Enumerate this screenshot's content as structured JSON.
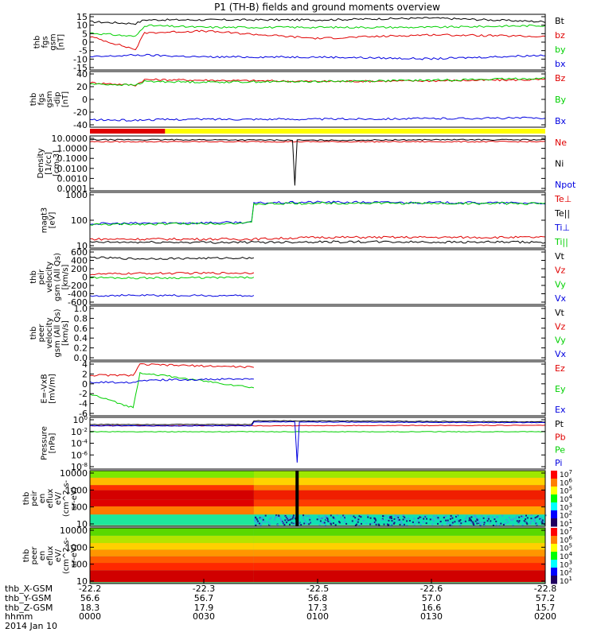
{
  "title": "P1 (TH-B) fields and ground moments overview",
  "colors": {
    "black": "#000000",
    "red": "#e00000",
    "green": "#00d000",
    "blue": "#0000e0",
    "mode_fast": "#e00000",
    "mode_slow": "#ffff00"
  },
  "ephemeris": {
    "labels": [
      "thb_X-GSM",
      "thb_Y-GSM",
      "thb_Z-GSM",
      "hhmm"
    ],
    "date": "2014 Jan 10",
    "ticks": [
      {
        "x": "-22.2",
        "y": "56.6",
        "z": "18.3",
        "t": "0000"
      },
      {
        "x": "-22.3",
        "y": "56.7",
        "z": "17.9",
        "t": "0030"
      },
      {
        "x": "-22.5",
        "y": "56.8",
        "z": "17.3",
        "t": "0100"
      },
      {
        "x": "-22.6",
        "y": "57.0",
        "z": "16.6",
        "t": "0130"
      },
      {
        "x": "-22.8",
        "y": "57.2",
        "z": "15.7",
        "t": "0200"
      }
    ]
  },
  "chart_data": [
    {
      "type": "line",
      "ylabel": [
        "thb",
        "fgs",
        "gsm",
        "[nT]"
      ],
      "yticks": [
        "15",
        "10",
        "5",
        "0",
        "-5",
        "-10",
        "-15"
      ],
      "ylim": [
        -15,
        15
      ],
      "legend": [
        "Bt",
        "bz",
        "by",
        "bx"
      ],
      "x_hours": [
        0,
        0.2,
        0.24,
        0.5,
        1.0,
        1.5,
        2.0
      ],
      "series": [
        {
          "name": "Bt",
          "color": "black",
          "values": [
            11,
            10,
            12,
            12,
            12,
            13,
            11
          ]
        },
        {
          "name": "bz",
          "color": "red",
          "values": [
            3,
            -4,
            5,
            6,
            2,
            4,
            3
          ]
        },
        {
          "name": "by",
          "color": "green",
          "values": [
            5,
            3,
            9,
            8,
            8,
            8,
            9
          ]
        },
        {
          "name": "bx",
          "color": "blue",
          "values": [
            -8,
            -7,
            -7,
            -8,
            -8,
            -9,
            -7
          ]
        }
      ]
    },
    {
      "type": "line",
      "ylabel": [
        "thb",
        "fgs",
        "gsm",
        "-dip",
        "[nT]"
      ],
      "yticks": [
        "40",
        "20",
        "0",
        "-20",
        "-40"
      ],
      "ylim": [
        -50,
        40
      ],
      "legend": [
        "Bz",
        "By",
        "Bx"
      ],
      "x_hours": [
        0,
        0.2,
        0.24,
        0.5,
        1.0,
        1.5,
        2.0
      ],
      "series": [
        {
          "name": "Bz",
          "color": "red",
          "values": [
            22,
            18,
            27,
            26,
            24,
            25,
            27
          ]
        },
        {
          "name": "By",
          "color": "green",
          "values": [
            20,
            18,
            24,
            23,
            24,
            26,
            29
          ]
        },
        {
          "name": "Bx",
          "color": "blue",
          "values": [
            -38,
            -39,
            -38,
            -37,
            -37,
            -36,
            -35
          ]
        }
      ]
    },
    {
      "type": "line",
      "ylabel": [
        "Density",
        "[1/cc]",
        "[cm-3]"
      ],
      "yticks": [
        "10.0000",
        "1.0000",
        "0.1000",
        "0.0100",
        "0.0010",
        "0.0001"
      ],
      "ylim": [
        0.0001,
        10
      ],
      "log": true,
      "legend": [
        "Ne",
        "Ni",
        "Npot"
      ],
      "x_hours": [
        0,
        0.5,
        1.0,
        1.5,
        2.0
      ],
      "series": [
        {
          "name": "Ne",
          "color": "red",
          "values": [
            3,
            3,
            3,
            3,
            3
          ]
        },
        {
          "name": "Ni",
          "color": "black",
          "values": [
            4.5,
            4.5,
            4.0,
            4.5,
            4.5
          ],
          "dip": {
            "at": 0.9,
            "to": 0.0003
          }
        }
      ]
    },
    {
      "type": "line",
      "ylabel": [
        "magt3",
        "[eV]"
      ],
      "yticks": [
        "1000",
        "100",
        "10"
      ],
      "ylim": [
        10,
        3000
      ],
      "log": true,
      "legend": [
        "Te⊥",
        "Te||",
        "Ti⊥",
        "Ti||"
      ],
      "x_hours": [
        0,
        0.72,
        0.72,
        1.0,
        2.0
      ],
      "series": [
        {
          "name": "Te⊥",
          "color": "red",
          "values": [
            25,
            25,
            25,
            30,
            30
          ]
        },
        {
          "name": "Te||",
          "color": "black",
          "values": [
            18,
            18,
            18,
            19,
            18
          ]
        },
        {
          "name": "Ti⊥",
          "color": "blue",
          "values": [
            120,
            140,
            1000,
            1100,
            1000
          ]
        },
        {
          "name": "Ti||",
          "color": "green",
          "values": [
            110,
            130,
            900,
            1000,
            950
          ]
        }
      ]
    },
    {
      "type": "line",
      "ylabel": [
        "thb",
        "peir",
        "velocity",
        "gsm (All Qs)",
        "[km/s]"
      ],
      "yticks": [
        "600",
        "400",
        "200",
        "0",
        "-200",
        "-400",
        "-600"
      ],
      "ylim": [
        -600,
        600
      ],
      "legend": [
        "Vt",
        "Vz",
        "Vy",
        "Vx"
      ],
      "x_hours": [
        0,
        0.2,
        0.72
      ],
      "series": [
        {
          "name": "Vt",
          "color": "black",
          "values": [
            430,
            400,
            420
          ]
        },
        {
          "name": "Vz",
          "color": "red",
          "values": [
            60,
            80,
            90
          ]
        },
        {
          "name": "Vy",
          "color": "green",
          "values": [
            -10,
            -20,
            -10
          ]
        },
        {
          "name": "Vx",
          "color": "blue",
          "values": [
            -410,
            -400,
            -410
          ]
        }
      ]
    },
    {
      "type": "line",
      "ylabel": [
        "thb",
        "peer",
        "velocity",
        "gsm (All Qs)",
        "[km/s]"
      ],
      "yticks": [
        "1.0",
        "0.8",
        "0.6",
        "0.4",
        "0.2",
        "0.0"
      ],
      "ylim": [
        0,
        1
      ],
      "legend": [
        "Vt",
        "Vz",
        "Vy",
        "Vx"
      ],
      "series": []
    },
    {
      "type": "line",
      "ylabel": [
        "E=-VxB",
        "[mV/m]"
      ],
      "yticks": [
        "4",
        "2",
        "0",
        "-2",
        "-4",
        "-6"
      ],
      "ylim": [
        -6,
        4
      ],
      "legend": [
        "Ez",
        "Ey",
        "Ex"
      ],
      "x_hours": [
        0,
        0.19,
        0.22,
        0.72
      ],
      "series": [
        {
          "name": "Ez",
          "color": "red",
          "values": [
            1.5,
            1.5,
            3.5,
            3.0
          ]
        },
        {
          "name": "Ey",
          "color": "green",
          "values": [
            -2.0,
            -4.5,
            2.0,
            -0.8
          ]
        },
        {
          "name": "Ex",
          "color": "blue",
          "values": [
            0.2,
            0.2,
            0.6,
            0.8
          ]
        }
      ]
    },
    {
      "type": "line",
      "ylabel": [
        "Pressure",
        "[nPa]"
      ],
      "yticks": [
        "10^0",
        "10^-2",
        "10^-4",
        "10^-6",
        "10^-8"
      ],
      "ylim": [
        1e-08,
        1
      ],
      "log": true,
      "legend": [
        "Pt",
        "Pb",
        "Pe",
        "Pi"
      ],
      "x_hours": [
        0,
        0.72,
        0.72,
        2.0
      ],
      "series": [
        {
          "name": "Pt",
          "color": "black",
          "values": [
            0.08,
            0.08,
            0.3,
            0.2
          ]
        },
        {
          "name": "Pb",
          "color": "red",
          "values": [
            0.05,
            0.05,
            0.05,
            0.06
          ]
        },
        {
          "name": "Pe",
          "color": "green",
          "values": [
            0.006,
            0.006,
            0.006,
            0.006
          ]
        },
        {
          "name": "Pi",
          "color": "blue",
          "values": [
            0.05,
            0.05,
            0.2,
            0.15
          ],
          "dip": {
            "at": 0.91,
            "to": 1e-07
          }
        }
      ]
    },
    {
      "type": "heatmap",
      "ylabel": [
        "thb",
        "peir",
        "en",
        "eflux",
        "eV/",
        "(cm^2-s-",
        "sr-eV)"
      ],
      "yticks": [
        "10000",
        "1000",
        "100",
        "10"
      ],
      "ylim": [
        5,
        30000
      ],
      "log": true,
      "colorbar_ticks": [
        "10^7",
        "10^6",
        "10^5",
        "10^4",
        "10^3",
        "10^2",
        "10^1"
      ],
      "rows": [
        {
          "e": [
            0.8,
            1.5
          ],
          "early": "#1ee89c",
          "late": "#11e0b4"
        },
        {
          "e": [
            1.5,
            2.05
          ],
          "early": "#ff7a00",
          "late": "#ffa800"
        },
        {
          "e": [
            2.05,
            2.5
          ],
          "early": "#e00000",
          "late": "#ff3c00"
        },
        {
          "e": [
            2.5,
            3.15
          ],
          "early": "#d40000",
          "late": "#f01e00"
        },
        {
          "e": [
            3.15,
            3.5
          ],
          "early": "#ff3000",
          "late": "#ff7d00"
        },
        {
          "e": [
            3.5,
            4.0
          ],
          "early": "#ffbb00",
          "late": "#ffd200"
        },
        {
          "e": [
            4.0,
            4.5
          ],
          "early": "#7ce800",
          "late": "#9ee800"
        }
      ]
    },
    {
      "type": "heatmap",
      "ylabel": [
        "thb",
        "peer",
        "en",
        "eflux",
        "eV/",
        "(cm^2-s-",
        "sr-eV)"
      ],
      "yticks": [
        "10000",
        "1000",
        "100",
        "10"
      ],
      "ylim": [
        5,
        30000
      ],
      "log": true,
      "colorbar_ticks": [
        "10^7",
        "10^6",
        "10^5",
        "10^4",
        "10^3",
        "10^2",
        "10^1"
      ],
      "rows": [
        {
          "e": [
            0.8,
            1.6
          ],
          "early": "#d00000",
          "late": "#d00000"
        },
        {
          "e": [
            1.6,
            2.1
          ],
          "early": "#ff2800",
          "late": "#ff2800"
        },
        {
          "e": [
            2.1,
            2.55
          ],
          "early": "#ff5a00",
          "late": "#ff5a00"
        },
        {
          "e": [
            2.55,
            3.0
          ],
          "early": "#ff9600",
          "late": "#ff9600"
        },
        {
          "e": [
            3.0,
            3.45
          ],
          "early": "#ffd000",
          "late": "#ffd000"
        },
        {
          "e": [
            3.45,
            3.95
          ],
          "early": "#b4e400",
          "late": "#b4e400"
        },
        {
          "e": [
            3.95,
            4.5
          ],
          "early": "#5ad800",
          "late": "#5ad800"
        }
      ]
    }
  ]
}
